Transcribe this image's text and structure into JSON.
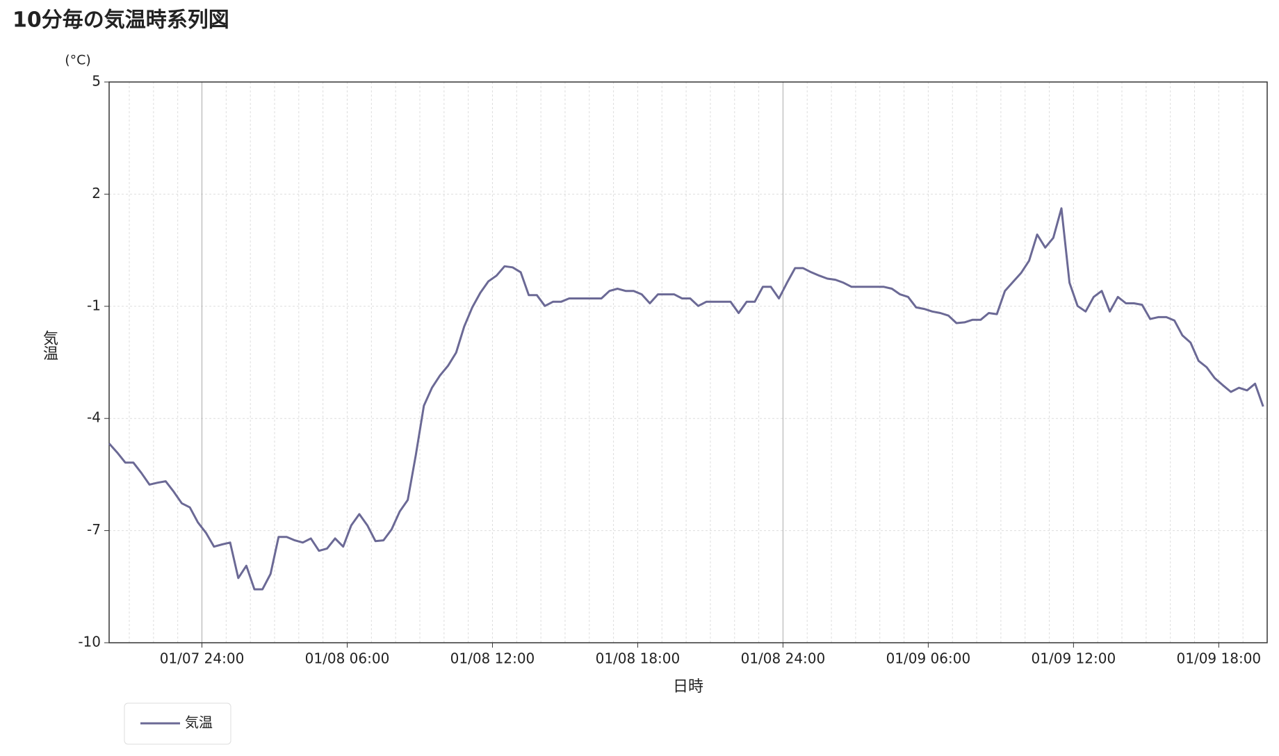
{
  "chart_data": {
    "type": "line",
    "title": "10分毎の気温時系列図",
    "y_unit": "(°C)",
    "y_label": "気温",
    "x_label": "日時",
    "xlim": [
      "01/07 20:10",
      "01/09 20:00"
    ],
    "xticks": [
      {
        "value": "01/08 00:00",
        "label": "01/07 24:00"
      },
      "01/08 06:00",
      "01/08 12:00",
      "01/08 18:00",
      {
        "value": "01/09 00:00",
        "label": "01/08 24:00"
      },
      "01/09 06:00",
      "01/09 12:00",
      "01/09 18:00"
    ],
    "xminorticks": [
      "01/07 21:00",
      "01/07 22:00",
      "01/07 23:00",
      "01/08 01:00",
      "01/08 02:00",
      "01/08 03:00",
      "01/08 04:00",
      "01/08 05:00",
      "01/08 07:00",
      "01/08 08:00",
      "01/08 09:00",
      "01/08 10:00",
      "01/08 11:00",
      "01/08 13:00",
      "01/08 14:00",
      "01/08 15:00",
      "01/08 16:00",
      "01/08 17:00",
      "01/08 19:00",
      "01/08 20:00",
      "01/08 21:00",
      "01/08 22:00",
      "01/08 23:00",
      "01/09 01:00",
      "01/09 02:00",
      "01/09 03:00",
      "01/09 04:00",
      "01/09 05:00",
      "01/09 07:00",
      "01/09 08:00",
      "01/09 09:00",
      "01/09 10:00",
      "01/09 11:00",
      "01/09 13:00",
      "01/09 14:00",
      "01/09 15:00",
      "01/09 16:00",
      "01/09 17:00",
      "01/09 19:00"
    ],
    "ylim": [
      -10,
      5
    ],
    "yticks": [
      -10,
      -7,
      -4,
      -1,
      2,
      5
    ],
    "grid": true,
    "legend": "bottom-left",
    "x": [
      "01/07 20:10",
      "01/07 20:30",
      "01/07 20:50",
      "01/07 21:10",
      "01/07 21:30",
      "01/07 21:50",
      "01/07 22:10",
      "01/07 22:30",
      "01/07 22:50",
      "01/07 23:10",
      "01/07 23:30",
      "01/07 23:50",
      "01/08 00:10",
      "01/08 00:30",
      "01/08 00:50",
      "01/08 01:10",
      "01/08 01:30",
      "01/08 01:50",
      "01/08 02:10",
      "01/08 02:30",
      "01/08 02:50",
      "01/08 03:10",
      "01/08 03:30",
      "01/08 03:50",
      "01/08 04:10",
      "01/08 04:30",
      "01/08 04:50",
      "01/08 05:10",
      "01/08 05:30",
      "01/08 05:50",
      "01/08 06:10",
      "01/08 06:30",
      "01/08 06:50",
      "01/08 07:10",
      "01/08 07:30",
      "01/08 07:50",
      "01/08 08:10",
      "01/08 08:30",
      "01/08 08:50",
      "01/08 09:10",
      "01/08 09:30",
      "01/08 09:50",
      "01/08 10:10",
      "01/08 10:30",
      "01/08 10:50",
      "01/08 11:10",
      "01/08 11:30",
      "01/08 11:50",
      "01/08 12:10",
      "01/08 12:30",
      "01/08 12:50",
      "01/08 13:10",
      "01/08 13:30",
      "01/08 13:50",
      "01/08 14:10",
      "01/08 14:30",
      "01/08 14:50",
      "01/08 15:10",
      "01/08 15:30",
      "01/08 15:50",
      "01/08 16:10",
      "01/08 16:30",
      "01/08 16:50",
      "01/08 17:10",
      "01/08 17:30",
      "01/08 17:50",
      "01/08 18:10",
      "01/08 18:30",
      "01/08 18:50",
      "01/08 19:10",
      "01/08 19:30",
      "01/08 19:50",
      "01/08 20:10",
      "01/08 20:30",
      "01/08 20:50",
      "01/08 21:10",
      "01/08 21:30",
      "01/08 21:50",
      "01/08 22:10",
      "01/08 22:30",
      "01/08 22:50",
      "01/08 23:10",
      "01/08 23:30",
      "01/08 23:50",
      "01/09 00:10",
      "01/09 00:30",
      "01/09 00:50",
      "01/09 01:10",
      "01/09 01:30",
      "01/09 01:50",
      "01/09 02:10",
      "01/09 02:30",
      "01/09 02:50",
      "01/09 03:10",
      "01/09 03:30",
      "01/09 03:50",
      "01/09 04:10",
      "01/09 04:30",
      "01/09 04:50",
      "01/09 05:10",
      "01/09 05:30",
      "01/09 05:50",
      "01/09 06:10",
      "01/09 06:30",
      "01/09 06:50",
      "01/09 07:10",
      "01/09 07:30",
      "01/09 07:50",
      "01/09 08:10",
      "01/09 08:30",
      "01/09 08:50",
      "01/09 09:10",
      "01/09 09:30",
      "01/09 09:50",
      "01/09 10:10",
      "01/09 10:30",
      "01/09 10:50",
      "01/09 11:10",
      "01/09 11:30",
      "01/09 11:50",
      "01/09 12:10",
      "01/09 12:30",
      "01/09 12:50",
      "01/09 13:10",
      "01/09 13:30",
      "01/09 13:50",
      "01/09 14:10",
      "01/09 14:30",
      "01/09 14:50",
      "01/09 15:10",
      "01/09 15:30",
      "01/09 15:50",
      "01/09 16:10",
      "01/09 16:30",
      "01/09 16:50",
      "01/09 17:10",
      "01/09 17:30",
      "01/09 17:50",
      "01/09 18:10",
      "01/09 18:30",
      "01/09 18:50",
      "01/09 19:10",
      "01/09 19:30",
      "01/09 19:50"
    ],
    "series": [
      {
        "name": "気温",
        "color": "#6b6995",
        "values": [
          -4.67,
          -4.91,
          -5.18,
          -5.18,
          -5.46,
          -5.77,
          -5.72,
          -5.68,
          -5.96,
          -6.27,
          -6.38,
          -6.78,
          -7.06,
          -7.43,
          -7.37,
          -7.32,
          -8.27,
          -7.94,
          -8.57,
          -8.57,
          -8.16,
          -7.17,
          -7.17,
          -7.26,
          -7.32,
          -7.21,
          -7.54,
          -7.48,
          -7.21,
          -7.43,
          -6.86,
          -6.56,
          -6.86,
          -7.28,
          -7.26,
          -6.97,
          -6.49,
          -6.18,
          -4.98,
          -3.66,
          -3.18,
          -2.85,
          -2.59,
          -2.24,
          -1.54,
          -1.03,
          -0.64,
          -0.33,
          -0.18,
          0.07,
          0.04,
          -0.09,
          -0.7,
          -0.7,
          -0.99,
          -0.88,
          -0.88,
          -0.79,
          -0.79,
          -0.79,
          -0.79,
          -0.79,
          -0.59,
          -0.53,
          -0.59,
          -0.59,
          -0.68,
          -0.92,
          -0.68,
          -0.68,
          -0.68,
          -0.79,
          -0.79,
          -0.99,
          -0.88,
          -0.88,
          -0.88,
          -0.88,
          -1.18,
          -0.88,
          -0.88,
          -0.48,
          -0.48,
          -0.79,
          -0.37,
          0.02,
          0.02,
          -0.09,
          -0.18,
          -0.26,
          -0.29,
          -0.37,
          -0.48,
          -0.48,
          -0.48,
          -0.48,
          -0.48,
          -0.53,
          -0.68,
          -0.75,
          -1.03,
          -1.07,
          -1.14,
          -1.18,
          -1.25,
          -1.45,
          -1.43,
          -1.36,
          -1.36,
          -1.18,
          -1.21,
          -0.59,
          -0.35,
          -0.11,
          0.22,
          0.92,
          0.57,
          0.83,
          1.62,
          -0.37,
          -0.99,
          -1.14,
          -0.75,
          -0.59,
          -1.14,
          -0.75,
          -0.92,
          -0.92,
          -0.96,
          -1.34,
          -1.29,
          -1.29,
          -1.38,
          -1.78,
          -1.97,
          -2.46,
          -2.63,
          -2.92,
          -3.11,
          -3.29,
          -3.18,
          -3.25,
          -3.07,
          -3.68
        ]
      }
    ]
  }
}
